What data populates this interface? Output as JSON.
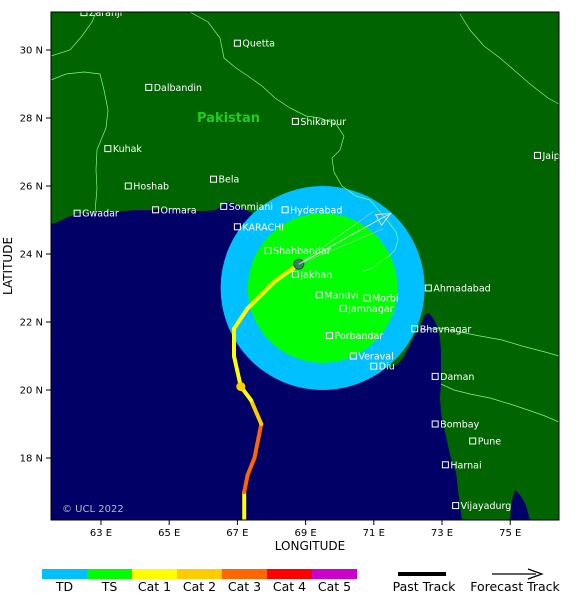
{
  "map": {
    "country_label": "Pakistan",
    "x_axis_title": "LONGITUDE",
    "y_axis_title": "LATITUDE",
    "credit": "© UCL 2022",
    "x_ticks": [
      "63 E",
      "65 E",
      "67 E",
      "69 E",
      "71 E",
      "73 E",
      "75 E"
    ],
    "y_ticks": [
      "30 N",
      "28 N",
      "26 N",
      "24 N",
      "22 N",
      "20 N",
      "18 N"
    ],
    "colors": {
      "sea": "#000066",
      "land": "#006400",
      "border": "#7fff7f",
      "wind_ts": "#00ff00",
      "wind_td": "#00c0ff"
    },
    "cities": [
      {
        "name": "Zaranji",
        "lon": 62.5,
        "lat": 31.1
      },
      {
        "name": "Quetta",
        "lon": 67.0,
        "lat": 30.2
      },
      {
        "name": "Dalbandin",
        "lon": 64.4,
        "lat": 28.9
      },
      {
        "name": "Shikarpur",
        "lon": 68.7,
        "lat": 27.9
      },
      {
        "name": "Kuhak",
        "lon": 63.2,
        "lat": 27.1
      },
      {
        "name": "Jaipur",
        "lon": 75.8,
        "lat": 26.9
      },
      {
        "name": "Hoshab",
        "lon": 63.8,
        "lat": 26.0
      },
      {
        "name": "Bela",
        "lon": 66.3,
        "lat": 26.2
      },
      {
        "name": "Gwadar",
        "lon": 62.3,
        "lat": 25.2
      },
      {
        "name": "Ormara",
        "lon": 64.6,
        "lat": 25.3
      },
      {
        "name": "Sonmiani",
        "lon": 66.6,
        "lat": 25.4
      },
      {
        "name": "Hyderabad",
        "lon": 68.4,
        "lat": 25.3
      },
      {
        "name": "KARACHI",
        "lon": 67.0,
        "lat": 24.8
      },
      {
        "name": "Shahbandar",
        "lon": 67.9,
        "lat": 24.1
      },
      {
        "name": "Jakhan",
        "lon": 68.7,
        "lat": 23.4
      },
      {
        "name": "Ahmadabad",
        "lon": 72.6,
        "lat": 23.0
      },
      {
        "name": "Mandvi",
        "lon": 69.4,
        "lat": 22.8
      },
      {
        "name": "Morbi",
        "lon": 70.8,
        "lat": 22.7
      },
      {
        "name": "Jamnagar",
        "lon": 70.1,
        "lat": 22.4
      },
      {
        "name": "Bhavnagar",
        "lon": 72.2,
        "lat": 21.8
      },
      {
        "name": "Porbandar",
        "lon": 69.7,
        "lat": 21.6
      },
      {
        "name": "Veraval",
        "lon": 70.4,
        "lat": 21.0
      },
      {
        "name": "Diu",
        "lon": 71.0,
        "lat": 20.7
      },
      {
        "name": "Daman",
        "lon": 72.8,
        "lat": 20.4
      },
      {
        "name": "Bombay",
        "lon": 72.8,
        "lat": 19.0
      },
      {
        "name": "Pune",
        "lon": 73.9,
        "lat": 18.5
      },
      {
        "name": "Harnai",
        "lon": 73.1,
        "lat": 17.8
      },
      {
        "name": "Vijayadurg",
        "lon": 73.4,
        "lat": 16.6
      }
    ],
    "past_track": [
      {
        "lon": 67.2,
        "lat": 16.0,
        "cat": "cat1"
      },
      {
        "lon": 67.2,
        "lat": 17.0,
        "cat": "cat1"
      },
      {
        "lon": 67.3,
        "lat": 17.5,
        "cat": "cat3"
      },
      {
        "lon": 67.5,
        "lat": 18.0,
        "cat": "cat3"
      },
      {
        "lon": 67.7,
        "lat": 19.0,
        "cat": "cat3"
      },
      {
        "lon": 67.4,
        "lat": 19.7,
        "cat": "cat2"
      },
      {
        "lon": 67.1,
        "lat": 20.1,
        "cat": "cat1"
      },
      {
        "lon": 66.9,
        "lat": 21.0,
        "cat": "cat1"
      },
      {
        "lon": 66.9,
        "lat": 21.8,
        "cat": "cat1"
      },
      {
        "lon": 67.3,
        "lat": 22.4,
        "cat": "cat1"
      },
      {
        "lon": 68.1,
        "lat": 23.2,
        "cat": "cat1"
      },
      {
        "lon": 68.8,
        "lat": 23.7,
        "cat": "cat1"
      }
    ],
    "current_position": {
      "lon": 68.8,
      "lat": 23.7
    },
    "forecast_track": [
      {
        "lon": 68.8,
        "lat": 23.7
      },
      {
        "lon": 71.5,
        "lat": 25.2
      }
    ],
    "wind_radius_ts_deg": 2.2,
    "wind_radius_td_deg": 3.0,
    "wind_center": {
      "lon": 69.5,
      "lat": 23.0
    }
  },
  "legend": {
    "scale": [
      {
        "label": "TD",
        "color": "#00c0ff"
      },
      {
        "label": "TS",
        "color": "#00ff00"
      },
      {
        "label": "Cat 1",
        "color": "#ffff00"
      },
      {
        "label": "Cat 2",
        "color": "#ffcc00"
      },
      {
        "label": "Cat 3",
        "color": "#ff6600"
      },
      {
        "label": "Cat 4",
        "color": "#ff0000"
      },
      {
        "label": "Cat 5",
        "color": "#cc00cc"
      }
    ],
    "past_track_label": "Past Track",
    "forecast_track_label": "Forecast Track"
  }
}
